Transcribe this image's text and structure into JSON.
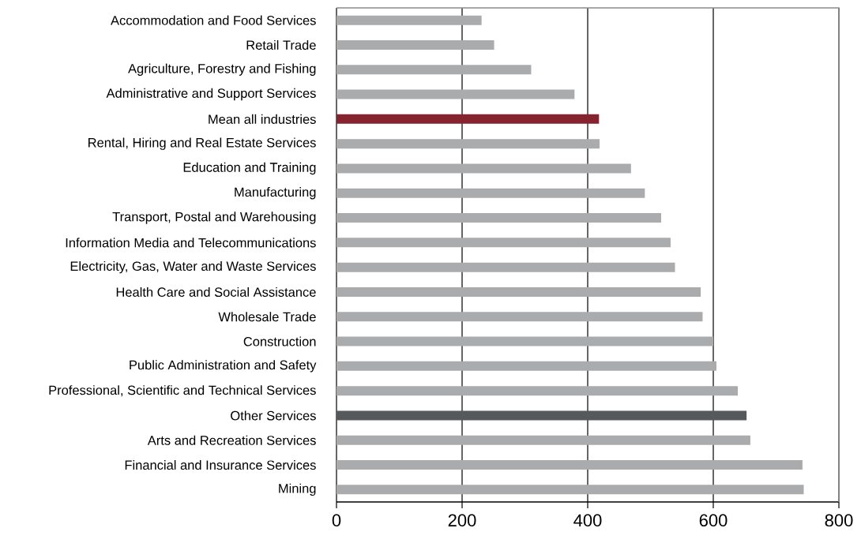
{
  "chart_data": {
    "type": "bar",
    "orientation": "horizontal",
    "grid": "x",
    "categories": [
      "Accommodation and Food Services",
      "Retail Trade",
      "Agriculture, Forestry and Fishing",
      "Administrative and Support Services",
      "Mean all industries",
      "Rental, Hiring and Real Estate Services",
      "Education and Training",
      "Manufacturing",
      "Transport, Postal and Warehousing",
      "Information Media and Telecommunications",
      "Electricity, Gas, Water and Waste Services",
      "Health Care and Social Assistance",
      "Wholesale Trade",
      "Construction",
      "Public Administration and Safety",
      "Professional, Scientific and Technical Services",
      "Other Services",
      "Arts and Recreation Services",
      "Financial and Insurance Services",
      "Mining"
    ],
    "values": [
      231,
      251,
      310,
      379,
      418,
      419,
      469,
      491,
      517,
      532,
      539,
      580,
      583,
      600,
      605,
      639,
      653,
      659,
      742,
      744
    ],
    "colors": [
      "#aaabad",
      "#aaabad",
      "#aaabad",
      "#aaabad",
      "#85232f",
      "#aaabad",
      "#aaabad",
      "#aaabad",
      "#aaabad",
      "#aaabad",
      "#aaabad",
      "#aaabad",
      "#aaabad",
      "#aaabad",
      "#aaabad",
      "#aaabad",
      "#55595c",
      "#aaabad",
      "#aaabad",
      "#aaabad"
    ],
    "xlim": [
      0,
      800
    ],
    "xticks": [
      0,
      200,
      400,
      600,
      800
    ]
  }
}
